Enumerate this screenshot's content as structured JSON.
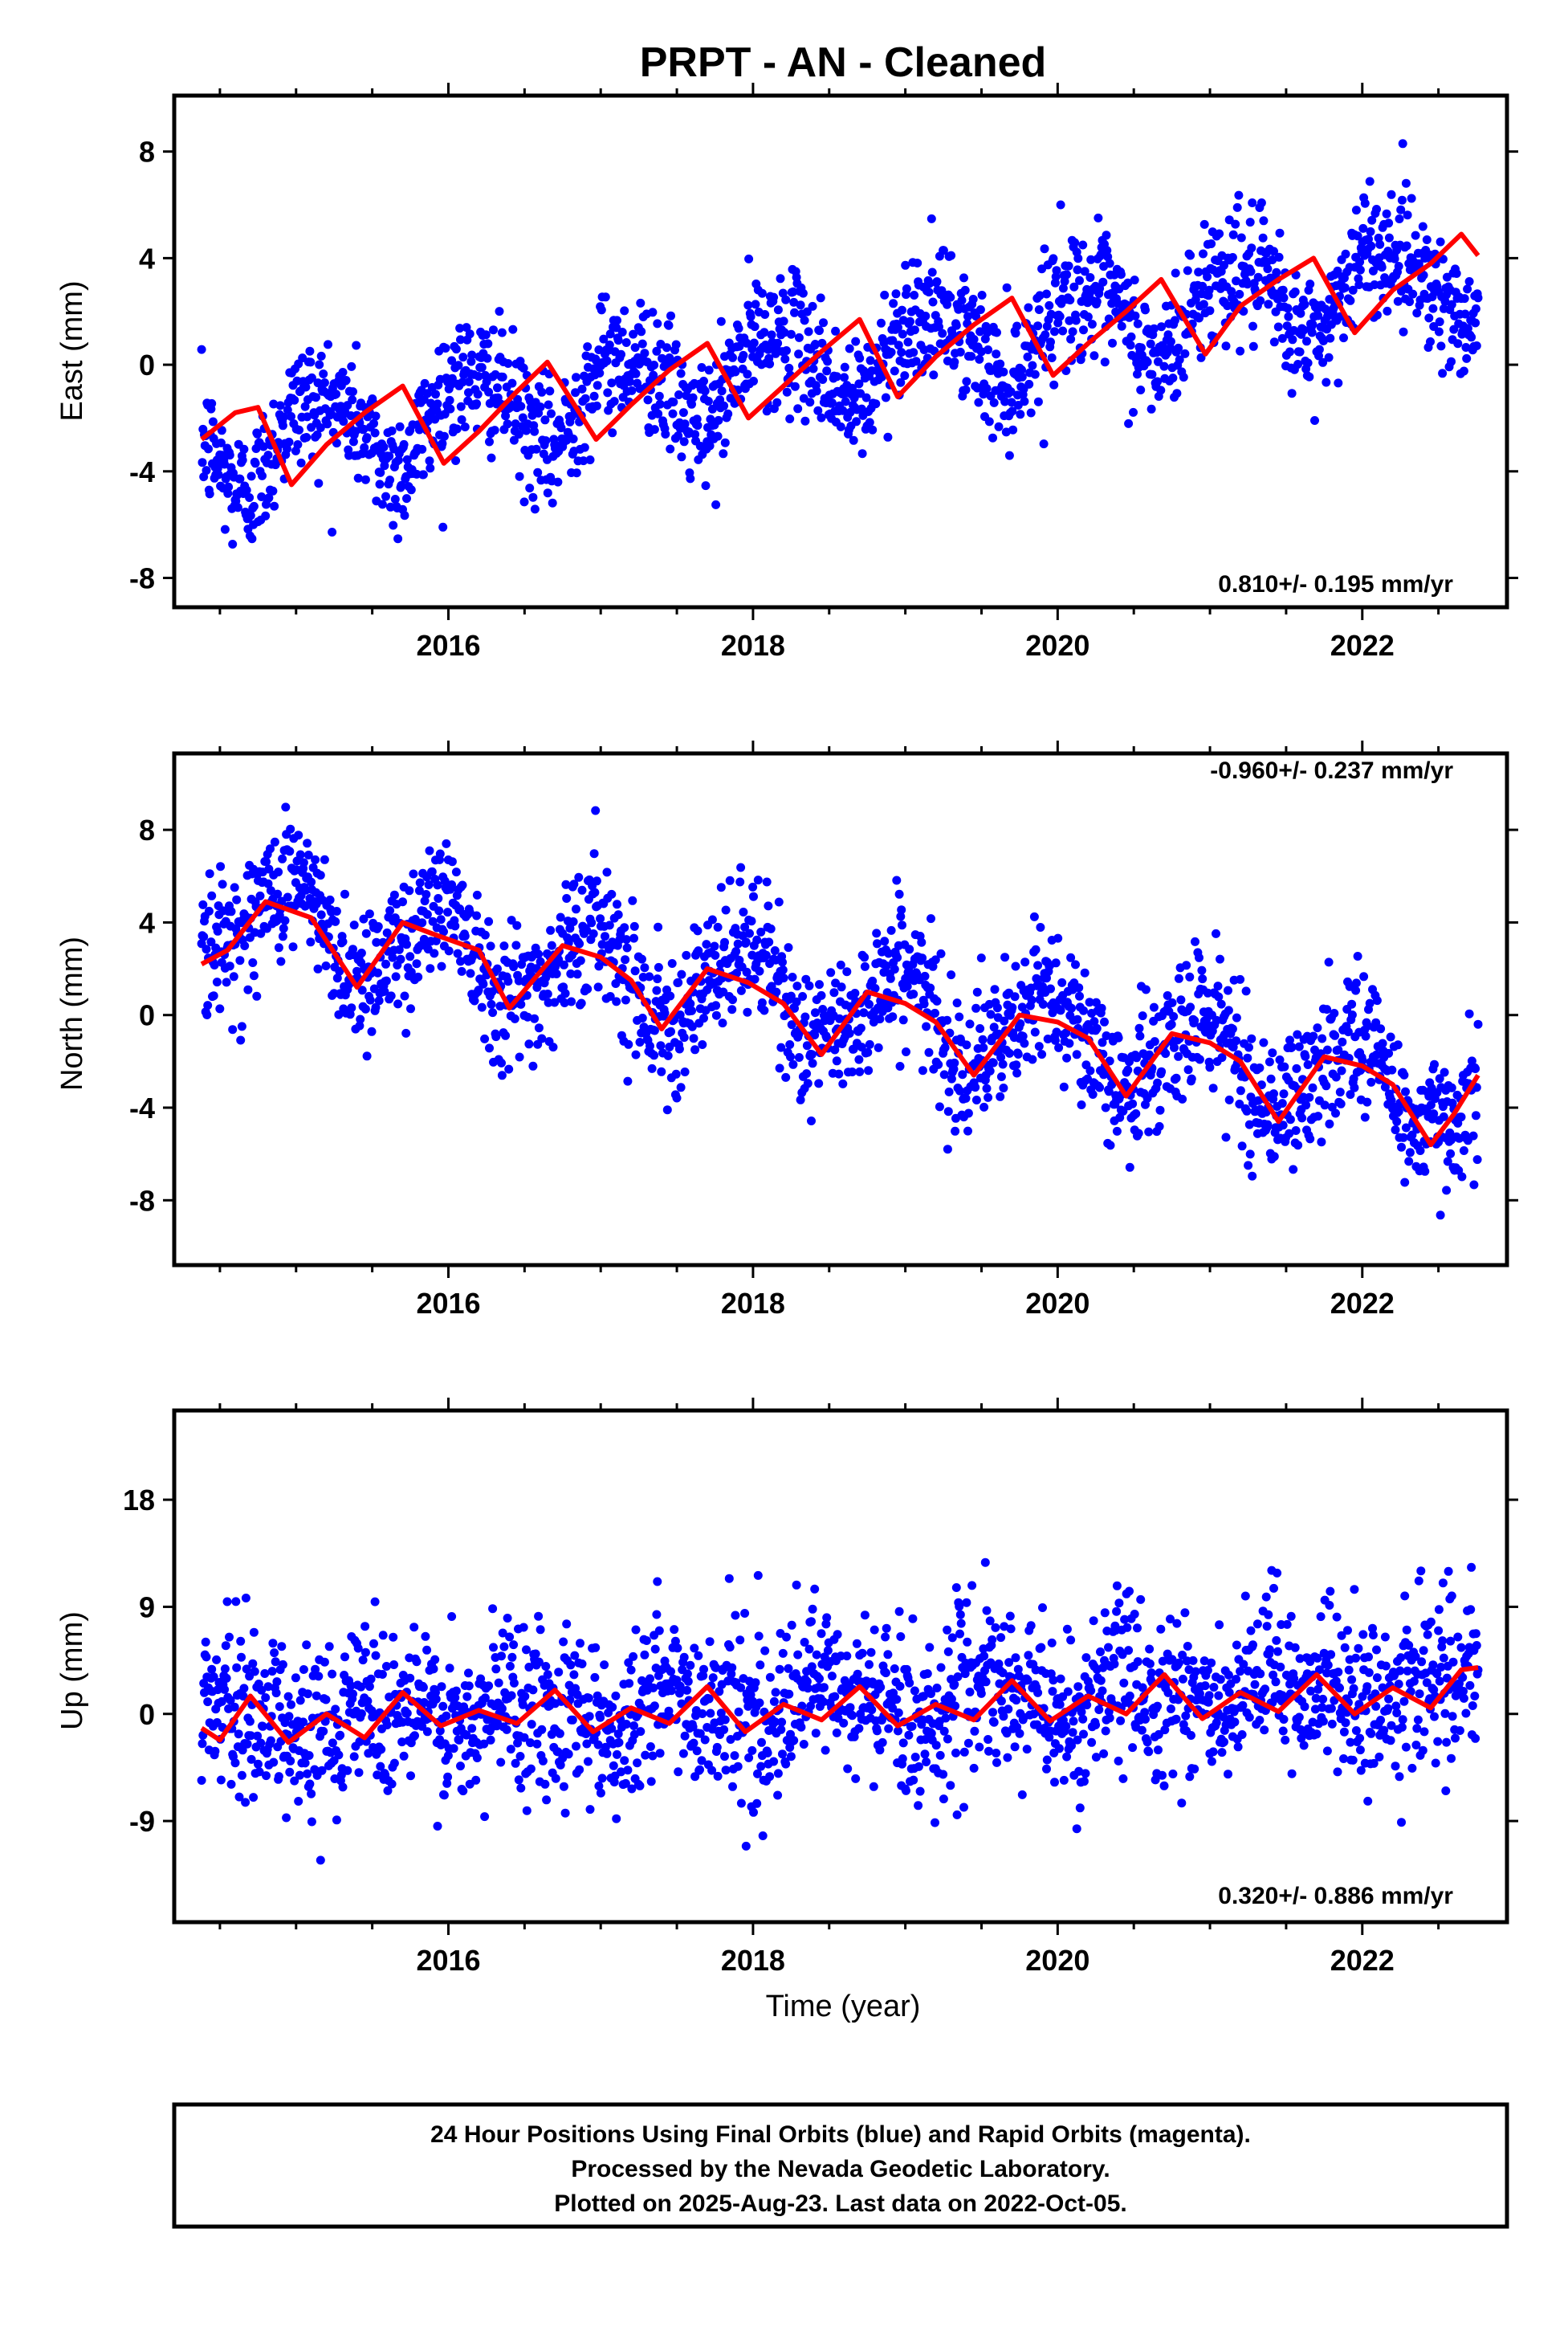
{
  "title": "PRPT  - AN - Cleaned",
  "xlabel": "Time (year)",
  "footer": {
    "line1": "24 Hour Positions Using Final Orbits (blue) and Rapid Orbits (magenta).",
    "line2": "Processed by the Nevada Geodetic Laboratory.",
    "line3": "Plotted on 2025-Aug-23. Last data on 2022-Oct-05."
  },
  "colors": {
    "points": "#0000ff",
    "model": "#ff0000",
    "frame": "#000000"
  },
  "chart_data": [
    {
      "type": "scatter",
      "ylabel": "East (mm)",
      "rate_label": "0.810+/- 0.195 mm/yr",
      "rate_position": "bottom-right",
      "xlim": [
        2014.2,
        2022.95
      ],
      "ylim": [
        -9.1,
        10.1
      ],
      "yticks": [
        -8,
        -4,
        0,
        4,
        8
      ],
      "xticks": [
        2016,
        2018,
        2020,
        2022
      ],
      "grid": false,
      "points_start": 2014.38,
      "points_end": 2022.76,
      "trend": {
        "t0": 2014.38,
        "y0": -3.2,
        "rate": 0.81
      },
      "seasonal": {
        "annual_amp": 1.5,
        "annual_phase": 0.1,
        "semiannual_amp": 0.3,
        "semiannual_phase": 0.2
      },
      "scatter_sigma": 1.2,
      "series": [
        {
          "name": "Final Orbits",
          "color": "#0000ff",
          "style": "points"
        },
        {
          "name": "Model",
          "color": "#ff0000",
          "style": "line"
        }
      ],
      "model": {
        "x": [
          2014.38,
          2014.6,
          2014.75,
          2014.97,
          2015.2,
          2015.45,
          2015.7,
          2015.97,
          2016.2,
          2016.45,
          2016.65,
          2016.97,
          2017.2,
          2017.45,
          2017.7,
          2017.97,
          2018.2,
          2018.45,
          2018.7,
          2018.95,
          2019.2,
          2019.45,
          2019.7,
          2019.97,
          2020.2,
          2020.45,
          2020.68,
          2020.97,
          2021.2,
          2021.45,
          2021.68,
          2021.95,
          2022.2,
          2022.45,
          2022.65,
          2022.76
        ],
        "y": [
          -2.8,
          -1.8,
          -1.6,
          -4.5,
          -3.0,
          -1.8,
          -0.8,
          -3.7,
          -2.5,
          -1.0,
          0.1,
          -2.8,
          -1.5,
          -0.2,
          0.8,
          -2.0,
          -0.8,
          0.5,
          1.7,
          -1.2,
          0.3,
          1.5,
          2.5,
          -0.4,
          0.8,
          2.0,
          3.2,
          0.4,
          2.2,
          3.2,
          4.0,
          1.2,
          2.8,
          3.8,
          4.9,
          4.1
        ]
      }
    },
    {
      "type": "scatter",
      "ylabel": "North (mm)",
      "rate_label": "-0.960+/- 0.237 mm/yr",
      "rate_position": "top-right",
      "xlim": [
        2014.2,
        2022.95
      ],
      "ylim": [
        -10.8,
        11.3
      ],
      "yticks": [
        -8,
        -4,
        0,
        4,
        8
      ],
      "xticks": [
        2016,
        2018,
        2020,
        2022
      ],
      "grid": false,
      "points_start": 2014.38,
      "points_end": 2022.76,
      "trend": {
        "t0": 2014.38,
        "y0": 4.5,
        "rate": -0.96
      },
      "seasonal": {
        "annual_amp": 1.8,
        "annual_phase": 0.3,
        "semiannual_amp": 0.3,
        "semiannual_phase": 0.1
      },
      "scatter_sigma": 1.5,
      "series": [
        {
          "name": "Final Orbits",
          "color": "#0000ff",
          "style": "points"
        },
        {
          "name": "Model",
          "color": "#ff0000",
          "style": "line"
        }
      ],
      "model": {
        "x": [
          2014.38,
          2014.55,
          2014.8,
          2015.1,
          2015.4,
          2015.7,
          2015.9,
          2016.2,
          2016.4,
          2016.75,
          2017.0,
          2017.2,
          2017.4,
          2017.7,
          2017.97,
          2018.2,
          2018.45,
          2018.75,
          2019.0,
          2019.2,
          2019.45,
          2019.75,
          2020.0,
          2020.2,
          2020.45,
          2020.75,
          2021.0,
          2021.2,
          2021.45,
          2021.75,
          2022.0,
          2022.2,
          2022.45,
          2022.6,
          2022.76
        ],
        "y": [
          2.2,
          2.8,
          4.9,
          4.2,
          1.2,
          4.0,
          3.5,
          2.8,
          0.3,
          3.0,
          2.5,
          1.5,
          -0.6,
          2.0,
          1.4,
          0.5,
          -1.7,
          1.0,
          0.5,
          -0.3,
          -2.6,
          0.0,
          -0.3,
          -1.0,
          -3.5,
          -0.8,
          -1.2,
          -2.0,
          -4.6,
          -1.8,
          -2.2,
          -3.0,
          -5.6,
          -4.3,
          -2.6
        ]
      }
    },
    {
      "type": "scatter",
      "ylabel": "Up (mm)",
      "rate_label": "0.320+/- 0.886 mm/yr",
      "rate_position": "bottom-right",
      "xlim": [
        2014.2,
        2022.95
      ],
      "ylim": [
        -17.5,
        25.5
      ],
      "yticks": [
        -9,
        0,
        9,
        18
      ],
      "xticks": [
        2016,
        2018,
        2020,
        2022
      ],
      "grid": false,
      "points_start": 2014.38,
      "points_end": 2022.76,
      "trend": {
        "t0": 2014.38,
        "y0": -0.5,
        "rate": 0.32
      },
      "seasonal": {
        "annual_amp": 1.3,
        "annual_phase": 0.7,
        "semiannual_amp": 1.0,
        "semiannual_phase": 0.25
      },
      "scatter_sigma": 3.5,
      "series": [
        {
          "name": "Final Orbits",
          "color": "#0000ff",
          "style": "points"
        },
        {
          "name": "Model",
          "color": "#ff0000",
          "style": "line"
        }
      ],
      "model": {
        "x": [
          2014.38,
          2014.5,
          2014.7,
          2014.95,
          2015.2,
          2015.45,
          2015.7,
          2015.95,
          2016.2,
          2016.45,
          2016.7,
          2016.95,
          2017.2,
          2017.45,
          2017.7,
          2017.95,
          2018.2,
          2018.45,
          2018.7,
          2018.95,
          2019.2,
          2019.45,
          2019.7,
          2019.95,
          2020.2,
          2020.45,
          2020.7,
          2020.95,
          2021.2,
          2021.45,
          2021.7,
          2021.95,
          2022.2,
          2022.45,
          2022.65,
          2022.76
        ],
        "y": [
          -1.2,
          -2.2,
          1.5,
          -2.4,
          0.0,
          -2.0,
          1.8,
          -1.0,
          0.3,
          -0.8,
          2.0,
          -1.5,
          0.5,
          -0.8,
          2.3,
          -1.5,
          0.8,
          -0.5,
          2.3,
          -1.0,
          0.8,
          -0.5,
          2.8,
          -0.6,
          1.5,
          0.0,
          3.3,
          -0.4,
          1.8,
          0.2,
          3.3,
          0.0,
          2.2,
          0.5,
          3.7,
          3.9
        ]
      }
    }
  ]
}
